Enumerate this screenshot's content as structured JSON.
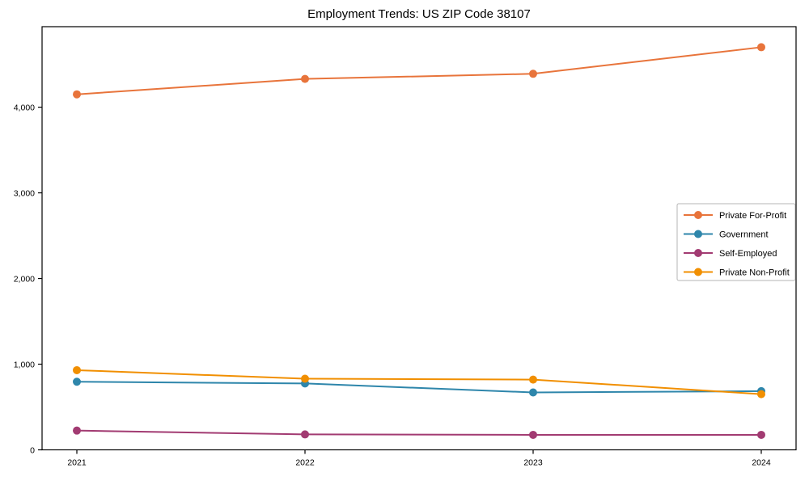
{
  "chart_data": {
    "type": "line",
    "title": "Employment Trends: US ZIP Code 38107",
    "xlabel": "",
    "ylabel": "",
    "x": [
      "2021",
      "2022",
      "2023",
      "2024"
    ],
    "series": [
      {
        "name": "Private For-Profit",
        "color": "#E8743B",
        "values": [
          4150,
          4330,
          4390,
          4700
        ]
      },
      {
        "name": "Government",
        "color": "#2E86AB",
        "values": [
          795,
          775,
          670,
          685
        ]
      },
      {
        "name": "Self-Employed",
        "color": "#A23B72",
        "values": [
          225,
          180,
          175,
          175
        ]
      },
      {
        "name": "Private Non-Profit",
        "color": "#F18F01",
        "values": [
          930,
          830,
          820,
          650
        ]
      }
    ],
    "ylim": [
      0,
      4940
    ],
    "yticks": [
      0,
      1000,
      2000,
      3000,
      4000
    ],
    "ytick_labels": [
      "0",
      "1,000",
      "2,000",
      "3,000",
      "4,000"
    ],
    "grid": false,
    "legend_position": "right",
    "marker": "circle",
    "frame_color": "#000000",
    "legend_border_color": "#b5b5b5",
    "background_color": "#ffffff"
  }
}
